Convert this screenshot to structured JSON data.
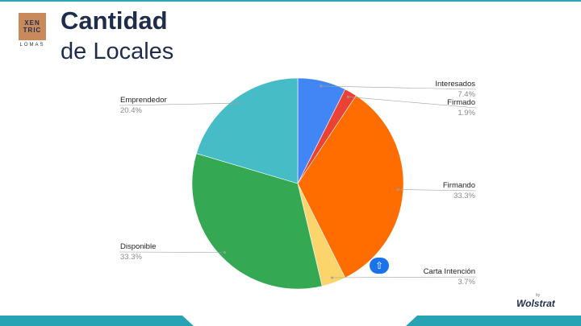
{
  "logo": {
    "wordmark_top": "XEN",
    "wordmark_bottom": "TRIC",
    "sub": "LOMAS"
  },
  "header": {
    "title": "Cantidad",
    "subtitle": "de Locales"
  },
  "chart_data": {
    "type": "pie",
    "title": "Cantidad de Locales",
    "slices": [
      {
        "label": "Interesados",
        "pct_label": "7.4%",
        "value": 7.4,
        "color": "#4285f4"
      },
      {
        "label": "Firmado",
        "pct_label": "1.9%",
        "value": 1.9,
        "color": "#ea4335"
      },
      {
        "label": "Firmando",
        "pct_label": "33.3%",
        "value": 33.3,
        "color": "#ff6d01"
      },
      {
        "label": "Carta Intención",
        "pct_label": "3.7%",
        "value": 3.7,
        "color": "#fbd56b"
      },
      {
        "label": "Disponible",
        "pct_label": "33.3%",
        "value": 33.3,
        "color": "#34a853"
      },
      {
        "label": "Emprendedor",
        "pct_label": "20.4%",
        "value": 20.4,
        "color": "#46bdc6"
      }
    ]
  },
  "nav": {
    "icon": "up-arrow-icon",
    "glyph": "⇧"
  },
  "brand": {
    "by": "by",
    "name": "Wolstrat"
  },
  "colors": {
    "navy": "#1f2d4d",
    "teal": "#27a3b3",
    "copper": "#c98a5b"
  }
}
